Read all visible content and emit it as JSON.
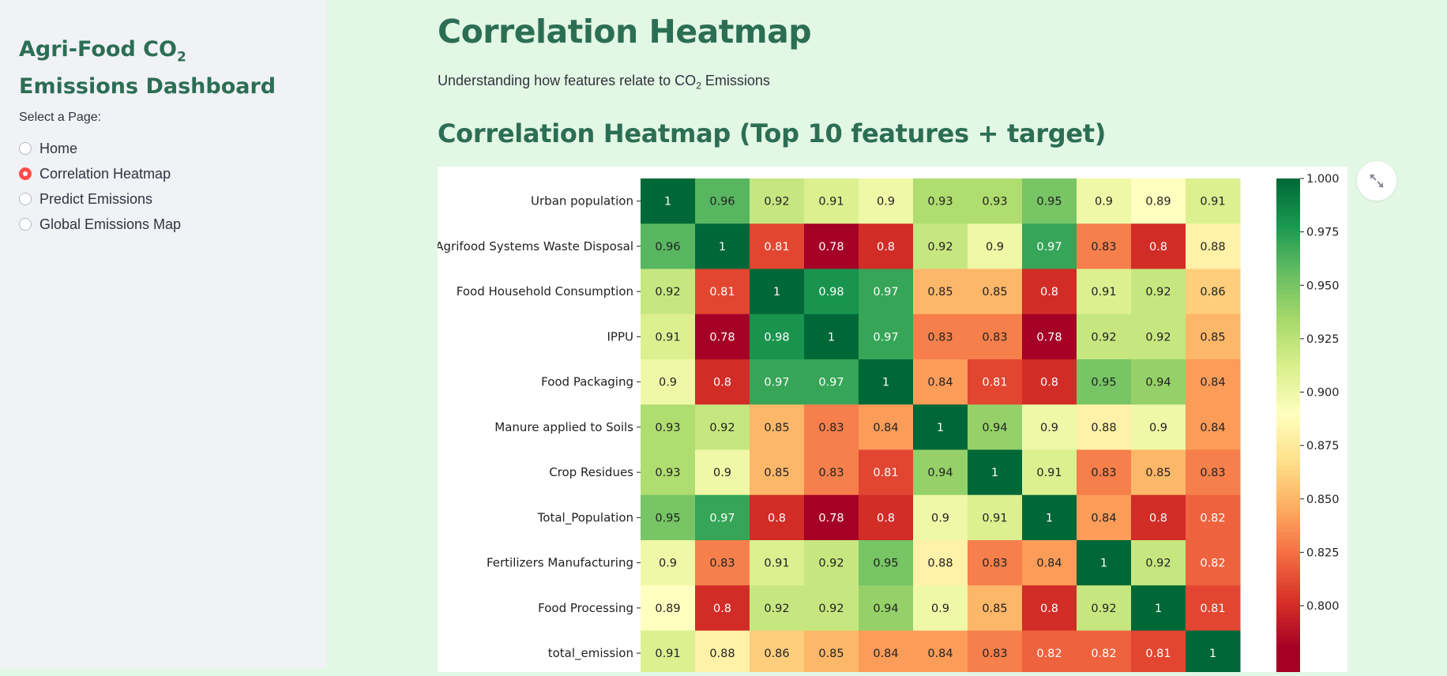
{
  "sidebar": {
    "title_prefix": "Agri-Food CO",
    "title_sub": "2",
    "title_suffix": " Emissions Dashboard",
    "select_label": "Select a Page:",
    "pages": [
      {
        "label": "Home",
        "selected": false
      },
      {
        "label": "Correlation Heatmap",
        "selected": true
      },
      {
        "label": "Predict Emissions",
        "selected": false
      },
      {
        "label": "Global Emissions Map",
        "selected": false
      }
    ]
  },
  "main": {
    "title": "Correlation Heatmap",
    "subtitle_prefix": "Understanding how features relate to CO",
    "subtitle_sub": "2",
    "subtitle_suffix": " Emissions",
    "section_title": "Correlation Heatmap (Top 10 features + target)"
  },
  "icons": {
    "expand": "expand-icon"
  },
  "colors": {
    "accent": "#ff4b4b",
    "heading": "#2c6e54",
    "main_bg": "#e2f7e4",
    "sidebar_bg": "#f0f2f6"
  },
  "chart_data": {
    "type": "heatmap",
    "rows": [
      "Urban population",
      "Agrifood Systems Waste Disposal",
      "Food Household Consumption",
      "IPPU",
      "Food Packaging",
      "Manure applied to Soils",
      "Crop Residues",
      "Total_Population",
      "Fertilizers Manufacturing",
      "Food Processing",
      "total_emission"
    ],
    "values": [
      [
        "1",
        "0.96",
        "0.92",
        "0.91",
        "0.9",
        "0.93",
        "0.93",
        "0.95",
        "0.9",
        "0.89",
        "0.91"
      ],
      [
        "0.96",
        "1",
        "0.81",
        "0.78",
        "0.8",
        "0.92",
        "0.9",
        "0.97",
        "0.83",
        "0.8",
        "0.88"
      ],
      [
        "0.92",
        "0.81",
        "1",
        "0.98",
        "0.97",
        "0.85",
        "0.85",
        "0.8",
        "0.91",
        "0.92",
        "0.86"
      ],
      [
        "0.91",
        "0.78",
        "0.98",
        "1",
        "0.97",
        "0.83",
        "0.83",
        "0.78",
        "0.92",
        "0.92",
        "0.85"
      ],
      [
        "0.9",
        "0.8",
        "0.97",
        "0.97",
        "1",
        "0.84",
        "0.81",
        "0.8",
        "0.95",
        "0.94",
        "0.84"
      ],
      [
        "0.93",
        "0.92",
        "0.85",
        "0.83",
        "0.84",
        "1",
        "0.94",
        "0.9",
        "0.88",
        "0.9",
        "0.84"
      ],
      [
        "0.93",
        "0.9",
        "0.85",
        "0.83",
        "0.81",
        "0.94",
        "1",
        "0.91",
        "0.83",
        "0.85",
        "0.83"
      ],
      [
        "0.95",
        "0.97",
        "0.8",
        "0.78",
        "0.8",
        "0.9",
        "0.91",
        "1",
        "0.84",
        "0.8",
        "0.82"
      ],
      [
        "0.9",
        "0.83",
        "0.91",
        "0.92",
        "0.95",
        "0.88",
        "0.83",
        "0.84",
        "1",
        "0.92",
        "0.82"
      ],
      [
        "0.89",
        "0.8",
        "0.92",
        "0.92",
        "0.94",
        "0.9",
        "0.85",
        "0.8",
        "0.92",
        "1",
        "0.81"
      ],
      [
        "0.91",
        "0.88",
        "0.86",
        "0.85",
        "0.84",
        "0.84",
        "0.83",
        "0.82",
        "0.82",
        "0.81",
        "1"
      ]
    ],
    "colormap": "RdYlGn",
    "colorbar_range": [
      0.78,
      1.0
    ],
    "colorbar_ticks": [
      "1.000",
      "0.975",
      "0.950",
      "0.925",
      "0.900",
      "0.875",
      "0.850",
      "0.825",
      "0.800"
    ]
  }
}
